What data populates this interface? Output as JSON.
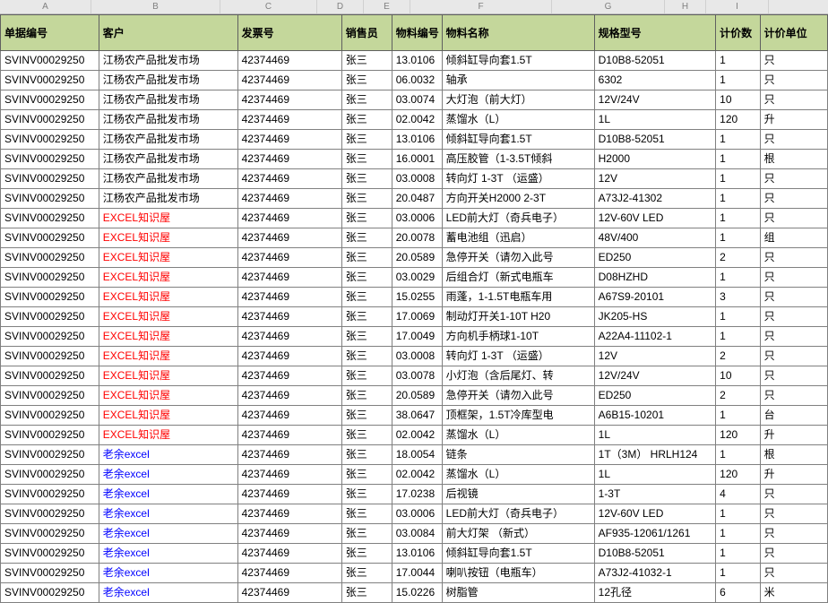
{
  "colLetters": [
    "A",
    "B",
    "C",
    "D",
    "E",
    "F",
    "G",
    "H",
    "I"
  ],
  "colClasses": [
    "c-A",
    "c-B",
    "c-C",
    "c-D",
    "c-E",
    "c-F",
    "c-G",
    "c-H",
    "c-I"
  ],
  "headers": [
    "单据编号",
    "客户",
    "发票号",
    "销售员",
    "物料编号",
    "物料名称",
    "规格型号",
    "计价数",
    "计价单位"
  ],
  "header_bg": "#c4d79b",
  "border_color": "#808080",
  "font_size": 12,
  "customer_colors": {
    "江杨农产品批发市场": "",
    "EXCEL知识屋": "red",
    "老余excel": "blue"
  },
  "rows": [
    {
      "a": "SVINV00029250",
      "b": "江杨农产品批发市场",
      "c": "42374469",
      "d": "张三",
      "e": "13.0106",
      "f": "倾斜缸导向套1.5T",
      "g": "D10B8-52051",
      "h": "1",
      "i": "只"
    },
    {
      "a": "SVINV00029250",
      "b": "江杨农产品批发市场",
      "c": "42374469",
      "d": "张三",
      "e": "06.0032",
      "f": "轴承",
      "g": "6302",
      "h": "1",
      "i": "只"
    },
    {
      "a": "SVINV00029250",
      "b": "江杨农产品批发市场",
      "c": "42374469",
      "d": "张三",
      "e": "03.0074",
      "f": "大灯泡（前大灯）",
      "g": "12V/24V",
      "h": "10",
      "i": "只"
    },
    {
      "a": "SVINV00029250",
      "b": "江杨农产品批发市场",
      "c": "42374469",
      "d": "张三",
      "e": "02.0042",
      "f": "蒸馏水（L）",
      "g": "1L",
      "h": "120",
      "i": "升"
    },
    {
      "a": "SVINV00029250",
      "b": "江杨农产品批发市场",
      "c": "42374469",
      "d": "张三",
      "e": "13.0106",
      "f": "倾斜缸导向套1.5T",
      "g": "D10B8-52051",
      "h": "1",
      "i": "只"
    },
    {
      "a": "SVINV00029250",
      "b": "江杨农产品批发市场",
      "c": "42374469",
      "d": "张三",
      "e": "16.0001",
      "f": "高压胶管（1-3.5T倾斜",
      "g": "H2000",
      "h": "1",
      "i": "根"
    },
    {
      "a": "SVINV00029250",
      "b": "江杨农产品批发市场",
      "c": "42374469",
      "d": "张三",
      "e": "03.0008",
      "f": "转向灯 1-3T （运盛）",
      "g": "12V",
      "h": "1",
      "i": "只"
    },
    {
      "a": "SVINV00029250",
      "b": "江杨农产品批发市场",
      "c": "42374469",
      "d": "张三",
      "e": "20.0487",
      "f": "方向开关H2000   2-3T",
      "g": "A73J2-41302",
      "h": "1",
      "i": "只"
    },
    {
      "a": "SVINV00029250",
      "b": "EXCEL知识屋",
      "c": "42374469",
      "d": "张三",
      "e": "03.0006",
      "f": "LED前大灯（奇兵电子）",
      "g": "12V-60V LED",
      "h": "1",
      "i": "只"
    },
    {
      "a": "SVINV00029250",
      "b": "EXCEL知识屋",
      "c": "42374469",
      "d": "张三",
      "e": "20.0078",
      "f": "蓄电池组（迅启）",
      "g": "48V/400",
      "h": "1",
      "i": "组"
    },
    {
      "a": "SVINV00029250",
      "b": "EXCEL知识屋",
      "c": "42374469",
      "d": "张三",
      "e": "20.0589",
      "f": "急停开关（请勿入此号",
      "g": "ED250",
      "h": "2",
      "i": "只"
    },
    {
      "a": "SVINV00029250",
      "b": "EXCEL知识屋",
      "c": "42374469",
      "d": "张三",
      "e": "03.0029",
      "f": "后组合灯（新式电瓶车",
      "g": "D08HZHD",
      "h": "1",
      "i": "只"
    },
    {
      "a": "SVINV00029250",
      "b": "EXCEL知识屋",
      "c": "42374469",
      "d": "张三",
      "e": "15.0255",
      "f": "雨蓬，1-1.5T电瓶车用",
      "g": "A67S9-20101",
      "h": "3",
      "i": "只"
    },
    {
      "a": "SVINV00029250",
      "b": "EXCEL知识屋",
      "c": "42374469",
      "d": "张三",
      "e": "17.0069",
      "f": "制动灯开关1-10T  H20",
      "g": "JK205-HS",
      "h": "1",
      "i": "只"
    },
    {
      "a": "SVINV00029250",
      "b": "EXCEL知识屋",
      "c": "42374469",
      "d": "张三",
      "e": "17.0049",
      "f": "方向机手柄球1-10T",
      "g": "A22A4-11102-1",
      "h": "1",
      "i": "只"
    },
    {
      "a": "SVINV00029250",
      "b": "EXCEL知识屋",
      "c": "42374469",
      "d": "张三",
      "e": "03.0008",
      "f": "转向灯 1-3T （运盛）",
      "g": "12V",
      "h": "2",
      "i": "只"
    },
    {
      "a": "SVINV00029250",
      "b": "EXCEL知识屋",
      "c": "42374469",
      "d": "张三",
      "e": "03.0078",
      "f": "小灯泡（含后尾灯、转",
      "g": "12V/24V",
      "h": "10",
      "i": "只"
    },
    {
      "a": "SVINV00029250",
      "b": "EXCEL知识屋",
      "c": "42374469",
      "d": "张三",
      "e": "20.0589",
      "f": "急停开关（请勿入此号",
      "g": "ED250",
      "h": "2",
      "i": "只"
    },
    {
      "a": "SVINV00029250",
      "b": "EXCEL知识屋",
      "c": "42374469",
      "d": "张三",
      "e": "38.0647",
      "f": "顶框架，1.5T冷库型电",
      "g": "A6B15-10201",
      "h": "1",
      "i": "台"
    },
    {
      "a": "SVINV00029250",
      "b": "EXCEL知识屋",
      "c": "42374469",
      "d": "张三",
      "e": "02.0042",
      "f": "蒸馏水（L）",
      "g": "1L",
      "h": "120",
      "i": "升"
    },
    {
      "a": "SVINV00029250",
      "b": "老余excel",
      "c": "42374469",
      "d": "张三",
      "e": "18.0054",
      "f": "链条",
      "g": "1T（3M） HRLH124",
      "h": "1",
      "i": "根"
    },
    {
      "a": "SVINV00029250",
      "b": "老余excel",
      "c": "42374469",
      "d": "张三",
      "e": "02.0042",
      "f": "蒸馏水（L）",
      "g": "1L",
      "h": "120",
      "i": "升"
    },
    {
      "a": "SVINV00029250",
      "b": "老余excel",
      "c": "42374469",
      "d": "张三",
      "e": "17.0238",
      "f": "后视镜",
      "g": "1-3T",
      "h": "4",
      "i": "只"
    },
    {
      "a": "SVINV00029250",
      "b": "老余excel",
      "c": "42374469",
      "d": "张三",
      "e": "03.0006",
      "f": "LED前大灯（奇兵电子）",
      "g": "12V-60V LED",
      "h": "1",
      "i": "只"
    },
    {
      "a": "SVINV00029250",
      "b": "老余excel",
      "c": "42374469",
      "d": "张三",
      "e": "03.0084",
      "f": "前大灯架 （新式）",
      "g": "AF935-12061/1261",
      "h": "1",
      "i": "只"
    },
    {
      "a": "SVINV00029250",
      "b": "老余excel",
      "c": "42374469",
      "d": "张三",
      "e": "13.0106",
      "f": "倾斜缸导向套1.5T",
      "g": "D10B8-52051",
      "h": "1",
      "i": "只"
    },
    {
      "a": "SVINV00029250",
      "b": "老余excel",
      "c": "42374469",
      "d": "张三",
      "e": "17.0044",
      "f": "喇叭按钮（电瓶车）",
      "g": "A73J2-41032-1",
      "h": "1",
      "i": "只"
    },
    {
      "a": "SVINV00029250",
      "b": "老余excel",
      "c": "42374469",
      "d": "张三",
      "e": "15.0226",
      "f": "树脂管",
      "g": "12孔径",
      "h": "6",
      "i": "米"
    }
  ]
}
